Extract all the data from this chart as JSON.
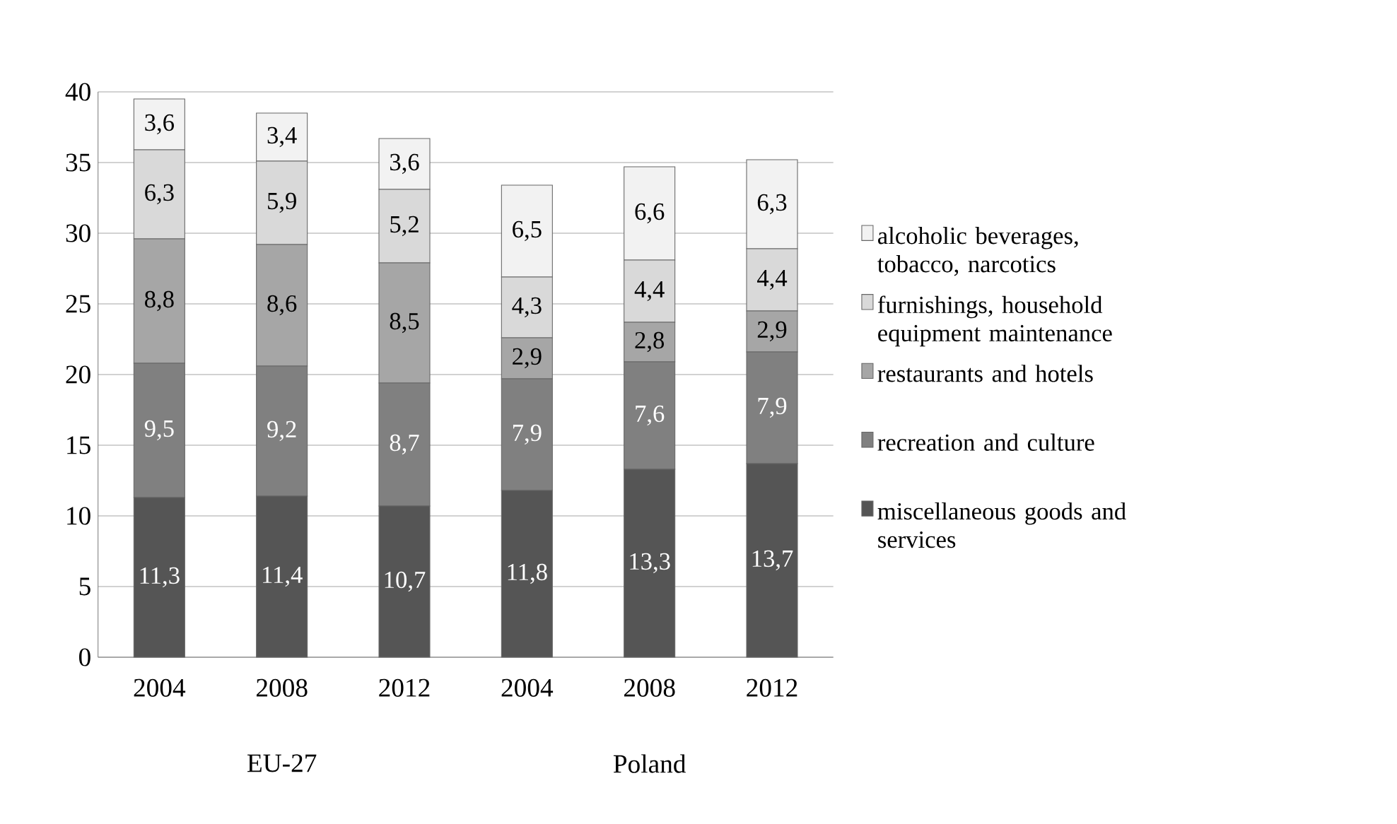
{
  "chart_data": {
    "type": "bar",
    "stacked": true,
    "categories": [
      "2004",
      "2008",
      "2012",
      "2004",
      "2008",
      "2012"
    ],
    "annotations": [
      "EU-27",
      "Poland"
    ],
    "series": [
      {
        "name": "miscellaneous goods and services",
        "color": "#555555",
        "values": [
          11.3,
          11.4,
          10.7,
          11.8,
          13.3,
          13.7
        ],
        "value_labels": [
          "11,3",
          "11,4",
          "10,7",
          "11,8",
          "13,3",
          "13,7"
        ]
      },
      {
        "name": "recreation and culture",
        "color": "#808080",
        "values": [
          9.5,
          9.2,
          8.7,
          7.9,
          7.6,
          7.9
        ],
        "value_labels": [
          "9,5",
          "9,2",
          "8,7",
          "7,9",
          "7,6",
          "7,9"
        ]
      },
      {
        "name": "restaurants and hotels",
        "color": "#a6a6a6",
        "values": [
          8.8,
          8.6,
          8.5,
          2.9,
          2.8,
          2.9
        ],
        "value_labels": [
          "8,8",
          "8,6",
          "8,5",
          "2,9",
          "2,8",
          "2,9"
        ]
      },
      {
        "name": "furnishings, household equipment maintenance",
        "color": "#d9d9d9",
        "values": [
          6.3,
          5.9,
          5.2,
          4.3,
          4.4,
          4.4
        ],
        "value_labels": [
          "6,3",
          "5,9",
          "5,2",
          "4,3",
          "4,4",
          "4,4"
        ]
      },
      {
        "name": "alcoholic beverages, tobacco, narcotics",
        "color": "#f2f2f2",
        "values": [
          3.6,
          3.4,
          3.6,
          6.5,
          6.6,
          6.3
        ],
        "value_labels": [
          "3,6",
          "3,4",
          "3,6",
          "6,5",
          "6,6",
          "6,3"
        ]
      }
    ],
    "ylim": [
      0,
      40
    ],
    "yticks": [
      0,
      5,
      10,
      15,
      20,
      25,
      30,
      35,
      40
    ],
    "grid": "y",
    "legend": "right"
  }
}
